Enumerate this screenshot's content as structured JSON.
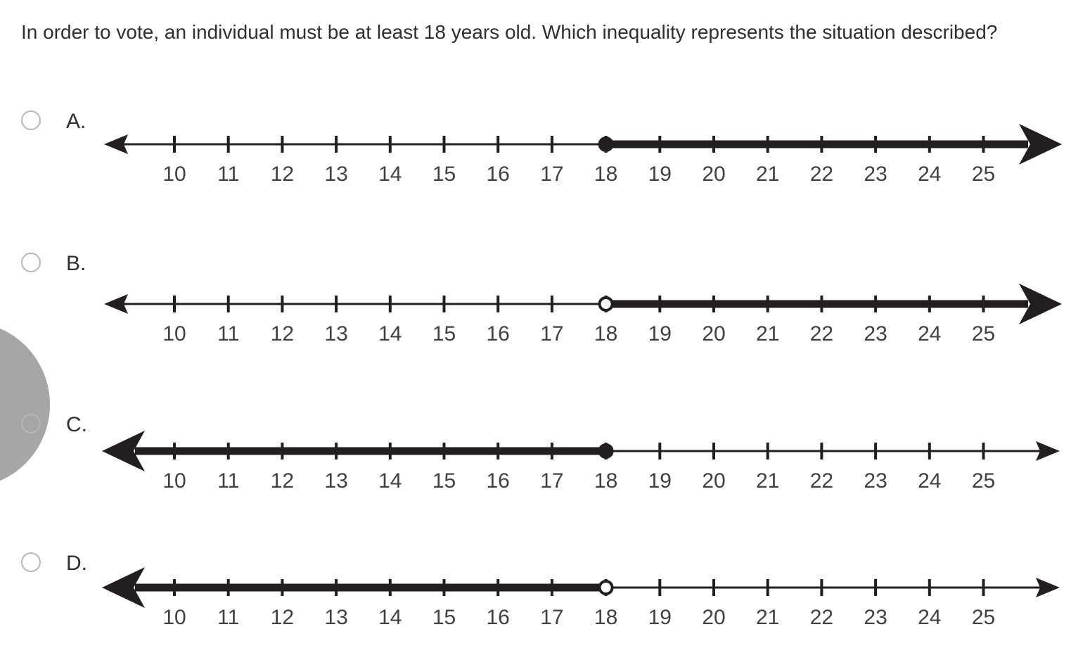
{
  "question": "In order to vote, an individual must be at least 18 years old. Which inequality represents the situation described?",
  "options": [
    {
      "id": "A",
      "letter": "A.",
      "number_line": {
        "ticks": [
          10,
          11,
          12,
          13,
          14,
          15,
          16,
          17,
          18,
          19,
          20,
          21,
          22,
          23,
          24,
          25
        ],
        "boundary": 18,
        "boundary_marker": "closed",
        "shaded_direction": "right"
      }
    },
    {
      "id": "B",
      "letter": "B.",
      "number_line": {
        "ticks": [
          10,
          11,
          12,
          13,
          14,
          15,
          16,
          17,
          18,
          19,
          20,
          21,
          22,
          23,
          24,
          25
        ],
        "boundary": 18,
        "boundary_marker": "open",
        "shaded_direction": "right"
      }
    },
    {
      "id": "C",
      "letter": "C.",
      "number_line": {
        "ticks": [
          10,
          11,
          12,
          13,
          14,
          15,
          16,
          17,
          18,
          19,
          20,
          21,
          22,
          23,
          24,
          25
        ],
        "boundary": 18,
        "boundary_marker": "closed",
        "shaded_direction": "left"
      }
    },
    {
      "id": "D",
      "letter": "D.",
      "number_line": {
        "ticks": [
          10,
          11,
          12,
          13,
          14,
          15,
          16,
          17,
          18,
          19,
          20,
          21,
          22,
          23,
          24,
          25
        ],
        "boundary": 18,
        "boundary_marker": "open",
        "shaded_direction": "left"
      }
    }
  ],
  "colors": {
    "line": "#231f20",
    "tick_label": "#414042",
    "text": "#2f2f2f",
    "radio_border": "#b7b7b7",
    "gray_circle": "#a6a6a6",
    "background": "#ffffff"
  }
}
